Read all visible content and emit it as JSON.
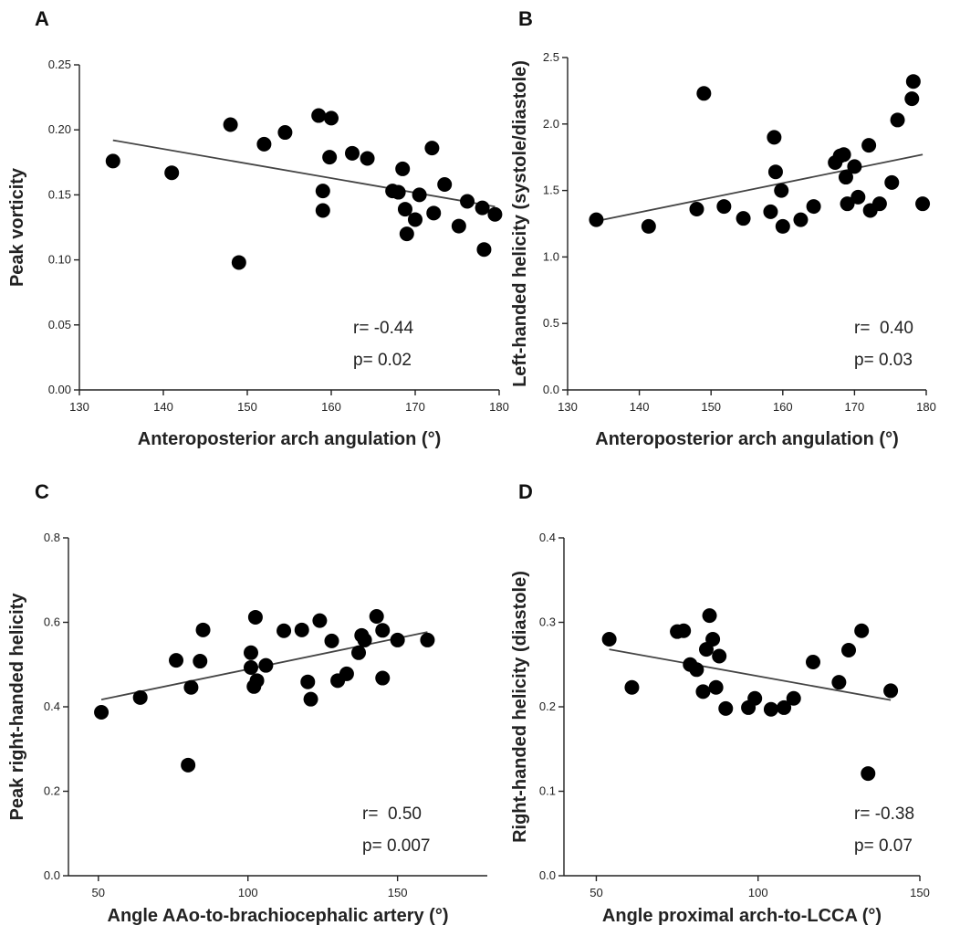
{
  "chart_data": [
    {
      "type": "scatter",
      "panel": "A",
      "xlabel": "Anteroposterior arch angulation (°)",
      "ylabel": "Peak vorticity",
      "xlim": [
        130,
        180
      ],
      "ylim": [
        0,
        0.25
      ],
      "xticks": [
        130,
        140,
        150,
        160,
        170,
        180
      ],
      "xtick_labels": [
        "130",
        "140",
        "150",
        "160",
        "170",
        "180"
      ],
      "yticks": [
        0,
        0.05,
        0.1,
        0.15,
        0.2,
        0.25
      ],
      "ytick_labels": [
        "0.00",
        "0.05",
        "0.10",
        "0.15",
        "0.20",
        "0.25"
      ],
      "x": [
        134,
        141,
        148,
        149,
        152,
        154.5,
        158.5,
        159,
        159,
        159.8,
        160,
        162.5,
        164.3,
        167.3,
        168,
        168.5,
        168.8,
        169,
        170,
        170.5,
        172,
        172.2,
        173.5,
        175.2,
        176.2,
        178,
        178.2,
        179.5
      ],
      "y": [
        0.176,
        0.167,
        0.204,
        0.098,
        0.189,
        0.198,
        0.211,
        0.153,
        0.138,
        0.179,
        0.209,
        0.182,
        0.178,
        0.153,
        0.152,
        0.17,
        0.139,
        0.12,
        0.131,
        0.15,
        0.186,
        0.136,
        0.158,
        0.126,
        0.145,
        0.14,
        0.108,
        0.135
      ],
      "fit": [
        [
          134,
          0.192
        ],
        [
          179.5,
          0.141
        ]
      ],
      "stat_r": "r= -0.44",
      "stat_p": "p= 0.02"
    },
    {
      "type": "scatter",
      "panel": "B",
      "xlabel": "Anteroposterior arch angulation (°)",
      "ylabel": "Left-handed helicity (systole/diastole)",
      "xlim": [
        130,
        180
      ],
      "ylim": [
        0,
        2.5
      ],
      "xticks": [
        130,
        140,
        150,
        160,
        170,
        180
      ],
      "xtick_labels": [
        "130",
        "140",
        "150",
        "160",
        "170",
        "180"
      ],
      "yticks": [
        0,
        0.5,
        1,
        1.5,
        2,
        2.5
      ],
      "ytick_labels": [
        "0.0",
        "0.5",
        "1.0",
        "1.5",
        "2.0",
        "2.5"
      ],
      "x": [
        134,
        141.3,
        148,
        149,
        151.8,
        154.5,
        158.3,
        158.8,
        159,
        159.8,
        160,
        162.5,
        164.3,
        167.3,
        168,
        168.5,
        168.8,
        169,
        170,
        170.5,
        172,
        172.2,
        173.5,
        175.2,
        176,
        178,
        178.2,
        179.5
      ],
      "y": [
        1.28,
        1.23,
        1.36,
        2.23,
        1.38,
        1.29,
        1.34,
        1.9,
        1.64,
        1.5,
        1.23,
        1.28,
        1.38,
        1.71,
        1.76,
        1.77,
        1.6,
        1.4,
        1.68,
        1.45,
        1.84,
        1.35,
        1.4,
        1.56,
        2.03,
        2.19,
        2.32,
        1.4
      ],
      "fit": [
        [
          134,
          1.27
        ],
        [
          179.5,
          1.77
        ]
      ],
      "stat_r": "r=  0.40",
      "stat_p": "p= 0.03"
    },
    {
      "type": "scatter",
      "panel": "C",
      "xlabel": "Angle AAo-to-brachiocephalic artery (°)",
      "ylabel": "Peak right-handed helicity",
      "xlim": [
        40,
        180
      ],
      "ylim": [
        0,
        0.8
      ],
      "xticks": [
        50,
        100,
        150
      ],
      "xtick_labels": [
        "50",
        "100",
        "150"
      ],
      "yticks": [
        0,
        0.2,
        0.4,
        0.6,
        0.8
      ],
      "ytick_labels": [
        "0.0",
        "0.2",
        "0.4",
        "0.6",
        "0.8"
      ],
      "x": [
        51,
        64,
        76,
        80,
        81,
        84,
        85,
        101,
        101,
        102,
        102.5,
        103,
        106,
        112,
        118,
        120,
        121,
        124,
        128,
        130,
        133,
        137,
        138,
        139,
        143,
        145,
        145,
        150,
        160
      ],
      "y": [
        0.387,
        0.422,
        0.51,
        0.262,
        0.446,
        0.508,
        0.582,
        0.528,
        0.493,
        0.448,
        0.612,
        0.462,
        0.498,
        0.58,
        0.582,
        0.459,
        0.418,
        0.604,
        0.556,
        0.462,
        0.478,
        0.528,
        0.569,
        0.558,
        0.614,
        0.468,
        0.581,
        0.558,
        0.558
      ],
      "fit": [
        [
          51,
          0.417
        ],
        [
          160,
          0.577
        ]
      ],
      "stat_r": "r=  0.50",
      "stat_p": "p= 0.007"
    },
    {
      "type": "scatter",
      "panel": "D",
      "xlabel": "Angle proximal arch-to-LCCA (°)",
      "ylabel": "Right-handed helicity (diastole)",
      "xlim": [
        40,
        150
      ],
      "ylim": [
        0,
        0.4
      ],
      "xticks": [
        50,
        100,
        150
      ],
      "xtick_labels": [
        "50",
        "100",
        "150"
      ],
      "yticks": [
        0,
        0.1,
        0.2,
        0.3,
        0.4
      ],
      "ytick_labels": [
        "0.0",
        "0.1",
        "0.2",
        "0.3",
        "0.4"
      ],
      "x": [
        54,
        61,
        75,
        77,
        79,
        81,
        83,
        84,
        85,
        86,
        87,
        88,
        90,
        97,
        99,
        104,
        108,
        111,
        117,
        125,
        128,
        132,
        134,
        141
      ],
      "y": [
        0.28,
        0.223,
        0.289,
        0.29,
        0.25,
        0.244,
        0.218,
        0.268,
        0.308,
        0.28,
        0.223,
        0.26,
        0.198,
        0.199,
        0.21,
        0.197,
        0.199,
        0.21,
        0.253,
        0.229,
        0.267,
        0.29,
        0.121,
        0.219
      ],
      "fit": [
        [
          54,
          0.268
        ],
        [
          141,
          0.208
        ]
      ],
      "stat_r": "r= -0.38",
      "stat_p": "p= 0.07"
    }
  ]
}
